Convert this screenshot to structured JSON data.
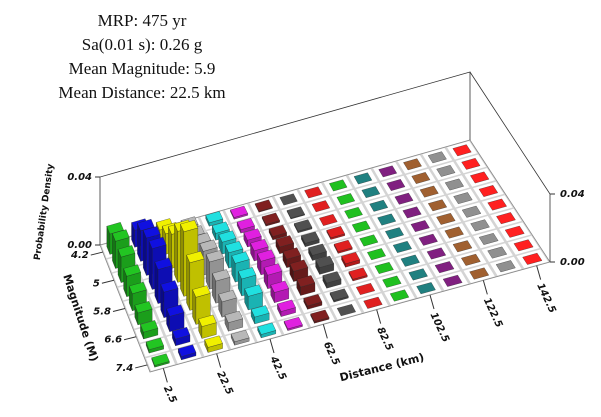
{
  "chart_data": {
    "type": "bar3d",
    "title": [
      "MRP: 475 yr",
      "Sa(0.01 s): 0.26 g",
      "Mean Magnitude: 5.9",
      "Mean Distance: 22.5 km"
    ],
    "xlabel": "Distance (km)",
    "ylabel": "Magnitude (M)",
    "zlabel": "Probability Density",
    "x": [
      2.5,
      12.5,
      22.5,
      32.5,
      42.5,
      52.5,
      62.5,
      72.5,
      82.5,
      92.5,
      102.5,
      112.5,
      122.5,
      132.5,
      142.5
    ],
    "y": [
      4.2,
      4.6,
      5.0,
      5.4,
      5.8,
      6.2,
      6.6,
      7.0,
      7.4
    ],
    "colors": [
      "#22c522",
      "#1010e0",
      "#f0f000",
      "#b8b8b8",
      "#20e0e0",
      "#e020e0",
      "#802020",
      "#505050",
      "#e02020",
      "#20c020",
      "#208080",
      "#802080",
      "#a06030",
      "#909090",
      "#ff2020"
    ],
    "values": [
      [
        0.012,
        0.01,
        0.006,
        0.003,
        0.002,
        0.001,
        0.0005,
        0,
        0,
        0,
        0,
        0,
        0,
        0,
        0
      ],
      [
        0.016,
        0.018,
        0.012,
        0.006,
        0.004,
        0.002,
        0.001,
        0.0005,
        0,
        0,
        0,
        0,
        0,
        0,
        0
      ],
      [
        0.015,
        0.022,
        0.02,
        0.01,
        0.007,
        0.004,
        0.002,
        0.001,
        0,
        0,
        0,
        0,
        0,
        0,
        0
      ],
      [
        0.012,
        0.024,
        0.03,
        0.014,
        0.009,
        0.006,
        0.004,
        0.002,
        0.001,
        0,
        0,
        0,
        0,
        0,
        0
      ],
      [
        0.01,
        0.02,
        0.038,
        0.016,
        0.011,
        0.008,
        0.005,
        0.003,
        0.001,
        0,
        0,
        0,
        0,
        0,
        0
      ],
      [
        0.007,
        0.015,
        0.028,
        0.013,
        0.01,
        0.008,
        0.006,
        0.004,
        0.002,
        0,
        0,
        0,
        0,
        0,
        0
      ],
      [
        0.004,
        0.009,
        0.016,
        0.009,
        0.008,
        0.006,
        0.005,
        0.003,
        0.001,
        0,
        0,
        0,
        0,
        0,
        0
      ],
      [
        0.002,
        0.004,
        0.007,
        0.005,
        0.004,
        0.003,
        0.002,
        0.001,
        0,
        0,
        0,
        0,
        0,
        0,
        0
      ],
      [
        0.001,
        0.002,
        0.003,
        0.002,
        0.002,
        0.001,
        0.001,
        0,
        0,
        0,
        0,
        0,
        0,
        0,
        0
      ]
    ],
    "xlim": [
      -2.5,
      147.5
    ],
    "xticks": [
      2.5,
      22.5,
      42.5,
      62.5,
      82.5,
      102.5,
      122.5,
      142.5
    ],
    "ylim": [
      4.0,
      7.6
    ],
    "yticks": [
      4.2,
      5,
      5.8,
      6.6,
      7.4
    ],
    "zlim": [
      0,
      0.04
    ],
    "zticks": [
      {
        "value": 0,
        "label": "0.00"
      },
      {
        "value": 0.04,
        "label": "0.04"
      }
    ]
  }
}
